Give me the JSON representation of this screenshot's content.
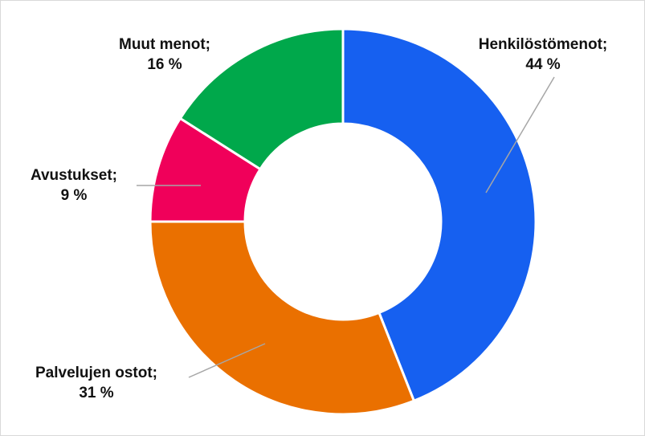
{
  "chart_data": {
    "type": "donut",
    "categories": [
      "Henkilöstömenot;",
      "Palvelujen ostot;",
      "Avustukset;",
      "Muut menot;"
    ],
    "values": [
      44,
      31,
      9,
      16
    ],
    "value_labels": [
      "44 %",
      "31 %",
      "9 %",
      "16 %"
    ],
    "colors": [
      "#1660f0",
      "#ea7000",
      "#f0005a",
      "#00a84b"
    ]
  }
}
